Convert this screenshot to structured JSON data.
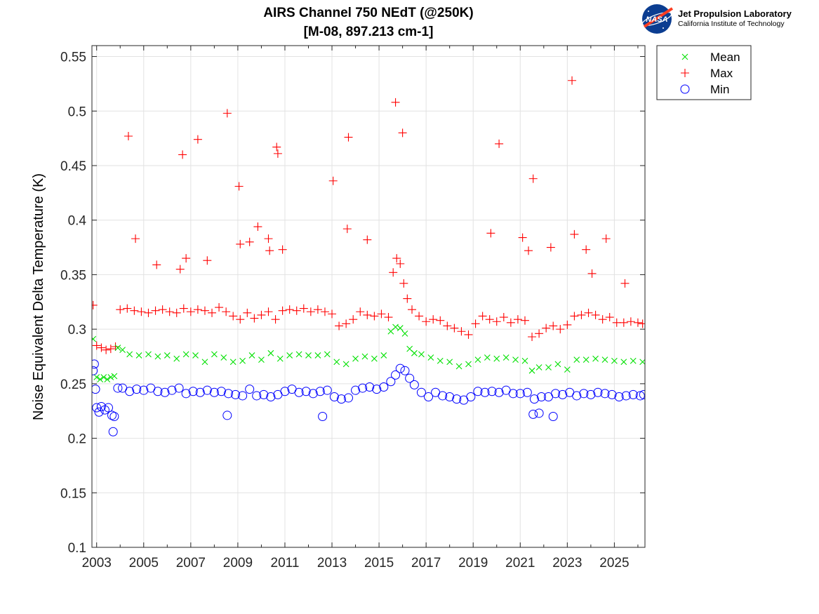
{
  "logo": {
    "badge": "NASA",
    "main_text": "Jet Propulsion Laboratory",
    "sub_text": "California Institute of Technology"
  },
  "chart_data": {
    "type": "scatter",
    "title_line1": "AIRS Channel 750 NEdT (@250K)",
    "title_line2": "[M-08, 897.213 cm-1]",
    "xlabel": "",
    "ylabel": "Noise Equivalent Delta Temperature (K)",
    "xlim": [
      2002.8,
      2026.3
    ],
    "ylim": [
      0.1,
      0.56
    ],
    "x_ticks": [
      2003,
      2005,
      2007,
      2009,
      2011,
      2013,
      2015,
      2017,
      2019,
      2021,
      2023,
      2025
    ],
    "x_tick_labels": [
      "2003",
      "2005",
      "2007",
      "2009",
      "2011",
      "2013",
      "2015",
      "2017",
      "2019",
      "2021",
      "2023",
      "2025"
    ],
    "y_ticks": [
      0.1,
      0.15,
      0.2,
      0.25,
      0.3,
      0.35,
      0.4,
      0.45,
      0.5,
      0.55
    ],
    "y_tick_labels": [
      "0.1",
      "0.15",
      "0.2",
      "0.25",
      "0.3",
      "0.35",
      "0.4",
      "0.45",
      "0.5",
      "0.55"
    ],
    "x_minor_ticks": [
      2004,
      2006,
      2008,
      2010,
      2012,
      2014,
      2016,
      2018,
      2020,
      2022,
      2024,
      2026
    ],
    "grid": true,
    "legend_position": "outside top-right",
    "series": [
      {
        "name": "Mean",
        "marker": "x",
        "color": "#00e000",
        "x": [
          2002.85,
          2003.0,
          2003.15,
          2003.3,
          2003.45,
          2003.6,
          2003.75,
          2003.9,
          2004.1,
          2004.4,
          2004.8,
          2005.2,
          2005.6,
          2006.0,
          2006.4,
          2006.8,
          2007.2,
          2007.6,
          2008.0,
          2008.4,
          2008.8,
          2009.2,
          2009.6,
          2010.0,
          2010.4,
          2010.8,
          2011.2,
          2011.6,
          2012.0,
          2012.4,
          2012.8,
          2013.2,
          2013.6,
          2014.0,
          2014.4,
          2014.8,
          2015.2,
          2015.5,
          2015.7,
          2015.9,
          2016.1,
          2016.3,
          2016.5,
          2016.8,
          2017.2,
          2017.6,
          2018.0,
          2018.4,
          2018.8,
          2019.2,
          2019.6,
          2020.0,
          2020.4,
          2020.8,
          2021.2,
          2021.5,
          2021.8,
          2022.2,
          2022.6,
          2023.0,
          2023.4,
          2023.8,
          2024.2,
          2024.6,
          2025.0,
          2025.4,
          2025.8,
          2026.2
        ],
        "values": [
          0.291,
          0.256,
          0.254,
          0.256,
          0.254,
          0.256,
          0.257,
          0.283,
          0.281,
          0.277,
          0.276,
          0.277,
          0.275,
          0.276,
          0.273,
          0.277,
          0.276,
          0.27,
          0.277,
          0.274,
          0.27,
          0.271,
          0.276,
          0.272,
          0.278,
          0.273,
          0.276,
          0.277,
          0.276,
          0.276,
          0.277,
          0.27,
          0.268,
          0.273,
          0.275,
          0.273,
          0.276,
          0.298,
          0.302,
          0.301,
          0.296,
          0.282,
          0.278,
          0.277,
          0.274,
          0.271,
          0.27,
          0.266,
          0.268,
          0.272,
          0.274,
          0.273,
          0.274,
          0.272,
          0.271,
          0.262,
          0.265,
          0.265,
          0.268,
          0.263,
          0.272,
          0.272,
          0.273,
          0.272,
          0.271,
          0.27,
          0.271,
          0.27
        ]
      },
      {
        "name": "Max",
        "marker": "+",
        "color": "#ff0000",
        "x": [
          2002.85,
          2003.0,
          2003.2,
          2003.4,
          2003.6,
          2003.8,
          2004.0,
          2004.3,
          2004.6,
          2004.9,
          2005.2,
          2005.5,
          2005.8,
          2006.1,
          2006.4,
          2006.7,
          2007.0,
          2007.3,
          2007.6,
          2007.9,
          2008.2,
          2008.5,
          2008.8,
          2009.1,
          2009.4,
          2009.7,
          2010.0,
          2010.3,
          2010.6,
          2010.9,
          2011.2,
          2011.5,
          2011.8,
          2012.1,
          2012.4,
          2012.7,
          2013.0,
          2013.3,
          2013.6,
          2013.9,
          2014.2,
          2014.5,
          2014.8,
          2015.1,
          2015.4,
          2015.6,
          2015.75,
          2015.9,
          2016.05,
          2016.2,
          2016.4,
          2016.7,
          2017.0,
          2017.3,
          2017.6,
          2017.9,
          2018.2,
          2018.5,
          2018.8,
          2019.1,
          2019.4,
          2019.7,
          2020.0,
          2020.3,
          2020.6,
          2020.9,
          2021.2,
          2021.5,
          2021.8,
          2022.1,
          2022.4,
          2022.7,
          2023.0,
          2023.3,
          2023.6,
          2023.9,
          2024.2,
          2024.5,
          2024.8,
          2025.1,
          2025.4,
          2025.7,
          2026.0,
          2026.2,
          2004.35,
          2004.65,
          2005.55,
          2006.55,
          2006.65,
          2006.8,
          2007.3,
          2007.7,
          2008.55,
          2009.05,
          2009.1,
          2009.5,
          2009.85,
          2010.3,
          2010.35,
          2010.65,
          2010.7,
          2010.9,
          2013.05,
          2013.7,
          2013.65,
          2014.5,
          2015.7,
          2016.0,
          2019.75,
          2020.1,
          2021.1,
          2021.35,
          2021.55,
          2022.3,
          2023.2,
          2023.3,
          2023.8,
          2024.05,
          2024.65,
          2025.45
        ],
        "values": [
          0.322,
          0.285,
          0.283,
          0.281,
          0.282,
          0.284,
          0.318,
          0.319,
          0.317,
          0.316,
          0.315,
          0.317,
          0.318,
          0.316,
          0.315,
          0.319,
          0.316,
          0.318,
          0.317,
          0.315,
          0.32,
          0.316,
          0.312,
          0.309,
          0.315,
          0.31,
          0.313,
          0.316,
          0.309,
          0.317,
          0.318,
          0.317,
          0.319,
          0.316,
          0.318,
          0.316,
          0.314,
          0.303,
          0.305,
          0.309,
          0.316,
          0.313,
          0.312,
          0.314,
          0.311,
          0.352,
          0.365,
          0.36,
          0.342,
          0.328,
          0.318,
          0.312,
          0.307,
          0.309,
          0.308,
          0.303,
          0.301,
          0.298,
          0.295,
          0.305,
          0.312,
          0.309,
          0.307,
          0.311,
          0.306,
          0.309,
          0.308,
          0.293,
          0.296,
          0.301,
          0.303,
          0.3,
          0.304,
          0.312,
          0.313,
          0.315,
          0.313,
          0.309,
          0.311,
          0.306,
          0.306,
          0.307,
          0.306,
          0.305,
          0.477,
          0.383,
          0.359,
          0.355,
          0.46,
          0.365,
          0.474,
          0.363,
          0.498,
          0.431,
          0.378,
          0.38,
          0.394,
          0.383,
          0.372,
          0.467,
          0.461,
          0.373,
          0.436,
          0.476,
          0.392,
          0.382,
          0.508,
          0.48,
          0.388,
          0.47,
          0.384,
          0.372,
          0.438,
          0.375,
          0.528,
          0.387,
          0.373,
          0.351,
          0.383,
          0.342
        ]
      },
      {
        "name": "Min",
        "marker": "o",
        "color": "#0000ff",
        "x": [
          2002.85,
          2002.9,
          2002.95,
          2003.0,
          2003.1,
          2003.2,
          2003.35,
          2003.5,
          2003.65,
          2003.75,
          2003.9,
          2004.1,
          2004.4,
          2004.7,
          2005.0,
          2005.3,
          2005.6,
          2005.9,
          2006.2,
          2006.5,
          2006.8,
          2007.1,
          2007.4,
          2007.7,
          2008.0,
          2008.3,
          2008.6,
          2008.9,
          2009.2,
          2009.5,
          2009.8,
          2010.1,
          2010.4,
          2010.7,
          2011.0,
          2011.3,
          2011.6,
          2011.9,
          2012.2,
          2012.5,
          2012.8,
          2013.1,
          2013.4,
          2013.7,
          2014.0,
          2014.3,
          2014.6,
          2014.9,
          2015.2,
          2015.5,
          2015.7,
          2015.9,
          2016.1,
          2016.3,
          2016.5,
          2016.8,
          2017.1,
          2017.4,
          2017.7,
          2018.0,
          2018.3,
          2018.6,
          2018.9,
          2019.2,
          2019.5,
          2019.8,
          2020.1,
          2020.4,
          2020.7,
          2021.0,
          2021.3,
          2021.6,
          2021.9,
          2022.2,
          2022.5,
          2022.8,
          2023.1,
          2023.4,
          2023.7,
          2024.0,
          2024.3,
          2024.6,
          2024.9,
          2025.2,
          2025.5,
          2025.8,
          2026.1,
          2026.25,
          2003.7,
          2008.55,
          2012.6,
          2022.4,
          2021.55,
          2021.8
        ],
        "values": [
          0.262,
          0.268,
          0.245,
          0.228,
          0.224,
          0.229,
          0.226,
          0.228,
          0.221,
          0.22,
          0.246,
          0.246,
          0.243,
          0.245,
          0.244,
          0.246,
          0.243,
          0.242,
          0.244,
          0.246,
          0.241,
          0.243,
          0.242,
          0.244,
          0.242,
          0.243,
          0.241,
          0.24,
          0.239,
          0.245,
          0.239,
          0.24,
          0.238,
          0.24,
          0.243,
          0.245,
          0.242,
          0.243,
          0.241,
          0.243,
          0.244,
          0.238,
          0.236,
          0.237,
          0.244,
          0.246,
          0.247,
          0.245,
          0.247,
          0.252,
          0.258,
          0.264,
          0.262,
          0.255,
          0.249,
          0.242,
          0.238,
          0.242,
          0.239,
          0.238,
          0.236,
          0.235,
          0.238,
          0.243,
          0.242,
          0.243,
          0.242,
          0.244,
          0.241,
          0.241,
          0.242,
          0.236,
          0.238,
          0.238,
          0.241,
          0.24,
          0.242,
          0.239,
          0.241,
          0.24,
          0.242,
          0.241,
          0.24,
          0.238,
          0.239,
          0.24,
          0.239,
          0.24,
          0.206,
          0.221,
          0.22,
          0.22,
          0.222,
          0.223
        ]
      }
    ]
  }
}
